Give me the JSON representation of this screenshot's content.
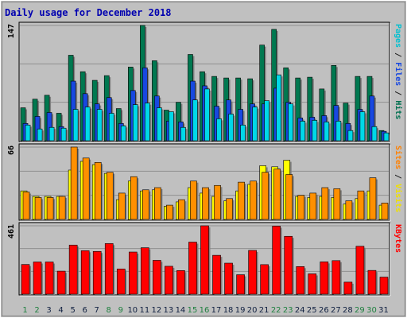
{
  "chart_data": {
    "type": "bar",
    "title": "Daily usage for December 2018",
    "categories": [
      "1",
      "2",
      "3",
      "4",
      "5",
      "6",
      "7",
      "8",
      "9",
      "10",
      "11",
      "12",
      "13",
      "14",
      "15",
      "16",
      "17",
      "18",
      "19",
      "20",
      "21",
      "22",
      "23",
      "24",
      "25",
      "26",
      "27",
      "28",
      "29",
      "30",
      "31"
    ],
    "weekend_days": [
      1,
      2,
      8,
      9,
      15,
      16,
      22,
      23,
      29,
      30
    ],
    "panels": [
      {
        "name": "top",
        "max_label": "147",
        "ymax": 147,
        "legend": [
          {
            "text": "Pages",
            "color": "#00c0d0"
          },
          {
            "text": " / ",
            "color": "#202020"
          },
          {
            "text": "Files",
            "color": "#1848e0"
          },
          {
            "text": " / ",
            "color": "#202020"
          },
          {
            "text": "Hits",
            "color": "#007050"
          }
        ],
        "series": [
          {
            "name": "Hits",
            "color": "#007850",
            "values": [
              42,
              53,
              58,
              35,
              109,
              88,
              77,
              83,
              41,
              94,
              147,
              102,
              39,
              49,
              110,
              88,
              82,
              80,
              80,
              79,
              122,
              142,
              93,
              80,
              81,
              66,
              96,
              48,
              82,
              82,
              13
            ]
          },
          {
            "name": "Files",
            "color": "#1848e0",
            "values": [
              22,
              31,
              36,
              18,
              76,
              60,
              47,
              55,
              22,
              64,
              93,
              57,
              25,
              24,
              76,
              70,
              44,
              52,
              40,
              47,
              47,
              67,
              49,
              29,
              30,
              32,
              45,
              22,
              40,
              57,
              12
            ]
          },
          {
            "name": "Pages",
            "color": "#00d8e8",
            "values": [
              20,
              15,
              17,
              16,
              40,
              43,
              40,
              35,
              19,
              46,
              48,
              42,
              37,
              17,
              52,
              66,
              28,
              34,
              20,
              43,
              51,
              84,
              47,
              25,
              26,
              24,
              25,
              13,
              37,
              18,
              10
            ]
          }
        ]
      },
      {
        "name": "middle",
        "max_label": "66",
        "ymax": 66,
        "legend": [
          {
            "text": "Sites",
            "color": "#ff8000"
          },
          {
            "text": " / ",
            "color": "#202020"
          },
          {
            "text": "Visits",
            "color": "#f0e000"
          }
        ],
        "series": [
          {
            "name": "Visits",
            "color": "#ffff00",
            "values": [
              26,
              21,
              21,
              21,
              45,
              53,
              50,
              42,
              18,
              35,
              26,
              27,
              12,
              16,
              29,
              24,
              21,
              17,
              26,
              32,
              49,
              48,
              54,
              21,
              20,
              21,
              20,
              14,
              19,
              26,
              13
            ]
          },
          {
            "name": "Sites",
            "color": "#ff9000",
            "values": [
              25,
              20,
              20,
              21,
              66,
              56,
              52,
              43,
              24,
              39,
              27,
              29,
              13,
              18,
              35,
              29,
              31,
              19,
              34,
              35,
              43,
              46,
              41,
              22,
              24,
              29,
              28,
              17,
              26,
              38,
              15
            ]
          }
        ]
      },
      {
        "name": "bottom",
        "max_label": "461",
        "ymax": 461,
        "legend": [
          {
            "text": "KBytes",
            "color": "#ff0000"
          }
        ],
        "series": [
          {
            "name": "KBytes",
            "color": "#ff0000",
            "values": [
              200,
              217,
              217,
              155,
              331,
              293,
              288,
              341,
              170,
              284,
              313,
              228,
              188,
              159,
              351,
              461,
              262,
              209,
              131,
              295,
              199,
              459,
              390,
              186,
              137,
              218,
              226,
              81,
              323,
              160,
              115
            ]
          }
        ]
      }
    ]
  }
}
